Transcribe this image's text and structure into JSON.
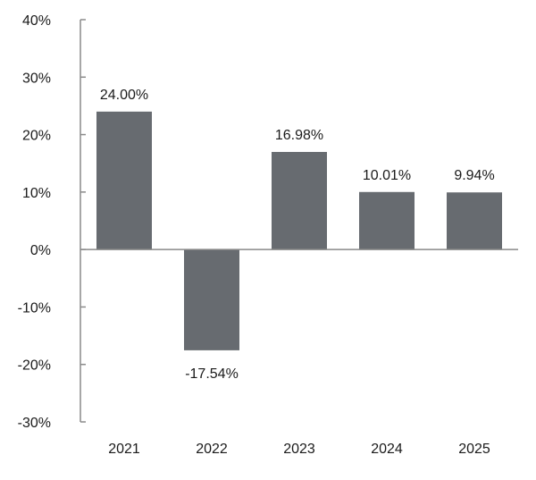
{
  "chart_data": {
    "type": "bar",
    "categories": [
      "2021",
      "2022",
      "2023",
      "2024",
      "2025"
    ],
    "values": [
      24.0,
      -17.54,
      16.98,
      10.01,
      9.94
    ],
    "data_labels": [
      "24.00%",
      "-17.54%",
      "16.98%",
      "10.01%",
      "9.94%"
    ],
    "ylim": [
      -30,
      40
    ],
    "yticks": [
      -30,
      -20,
      -10,
      0,
      10,
      20,
      30,
      40
    ],
    "ytick_labels": [
      "-30%",
      "-20%",
      "-10%",
      "0%",
      "10%",
      "20%",
      "30%",
      "40%"
    ],
    "title": "",
    "xlabel": "",
    "ylabel": "",
    "grid": false,
    "legend": "none",
    "colors": {
      "bar": "#676b70",
      "axis": "#8a8a8a",
      "text": "#1a1a1a"
    }
  }
}
